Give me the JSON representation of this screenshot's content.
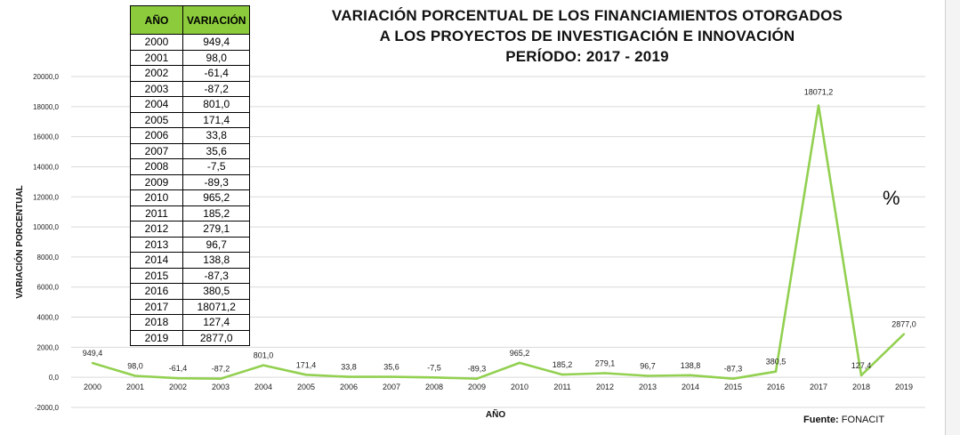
{
  "chart_data": {
    "type": "line",
    "title": [
      "VARIACIÓN PORCENTUAL DE LOS FINANCIAMIENTOS OTORGADOS",
      "A LOS PROYECTOS DE INVESTIGACIÓN E INNOVACIÓN",
      "PERÍODO: 2017 -  2019"
    ],
    "xlabel": "AÑO",
    "ylabel": "VARIACIÓN PORCENTUAL",
    "ylim": [
      -2000,
      20000
    ],
    "yticks": [
      "-2000,0",
      "0,0",
      "2000,0",
      "4000,0",
      "6000,0",
      "8000,0",
      "10000,0",
      "12000,0",
      "14000,0",
      "16000,0",
      "18000,0",
      "20000,0"
    ],
    "ytick_values": [
      -2000,
      0,
      2000,
      4000,
      6000,
      8000,
      10000,
      12000,
      14000,
      16000,
      18000,
      20000
    ],
    "grid": true,
    "line_color": "#92d050",
    "categories": [
      "2000",
      "2001",
      "2002",
      "2003",
      "2004",
      "2005",
      "2006",
      "2007",
      "2008",
      "2009",
      "2010",
      "2011",
      "2012",
      "2013",
      "2014",
      "2015",
      "2016",
      "2017",
      "2018",
      "2019"
    ],
    "values": [
      949.4,
      98.0,
      -61.4,
      -87.2,
      801.0,
      171.4,
      33.8,
      35.6,
      -7.5,
      -89.3,
      965.2,
      185.2,
      279.1,
      96.7,
      138.8,
      -87.3,
      380.5,
      18071.2,
      127.4,
      2877.0
    ],
    "data_labels": [
      "949,4",
      "98,0",
      "-61,4",
      "-87,2",
      "801,0",
      "171,4",
      "33,8",
      "35,6",
      "-7,5",
      "-89,3",
      "965,2",
      "185,2",
      "279,1",
      "96,7",
      "138,8",
      "-87,3",
      "380,5",
      "18071,2",
      "127,4",
      "2877,0"
    ]
  },
  "table": {
    "header_color": "#8ccc3c",
    "headers": [
      "AÑO",
      "VARIACIÓN"
    ],
    "rows": [
      [
        "2000",
        "949,4"
      ],
      [
        "2001",
        "98,0"
      ],
      [
        "2002",
        "-61,4"
      ],
      [
        "2003",
        "-87,2"
      ],
      [
        "2004",
        "801,0"
      ],
      [
        "2005",
        "171,4"
      ],
      [
        "2006",
        "33,8"
      ],
      [
        "2007",
        "35,6"
      ],
      [
        "2008",
        "-7,5"
      ],
      [
        "2009",
        "-89,3"
      ],
      [
        "2010",
        "965,2"
      ],
      [
        "2011",
        "185,2"
      ],
      [
        "2012",
        "279,1"
      ],
      [
        "2013",
        "96,7"
      ],
      [
        "2014",
        "138,8"
      ],
      [
        "2015",
        "-87,3"
      ],
      [
        "2016",
        "380,5"
      ],
      [
        "2017",
        "18071,2"
      ],
      [
        "2018",
        "127,4"
      ],
      [
        "2019",
        "2877,0"
      ]
    ]
  },
  "annotation": "%",
  "source": {
    "label": "Fuente:",
    "value": "FONACIT"
  }
}
